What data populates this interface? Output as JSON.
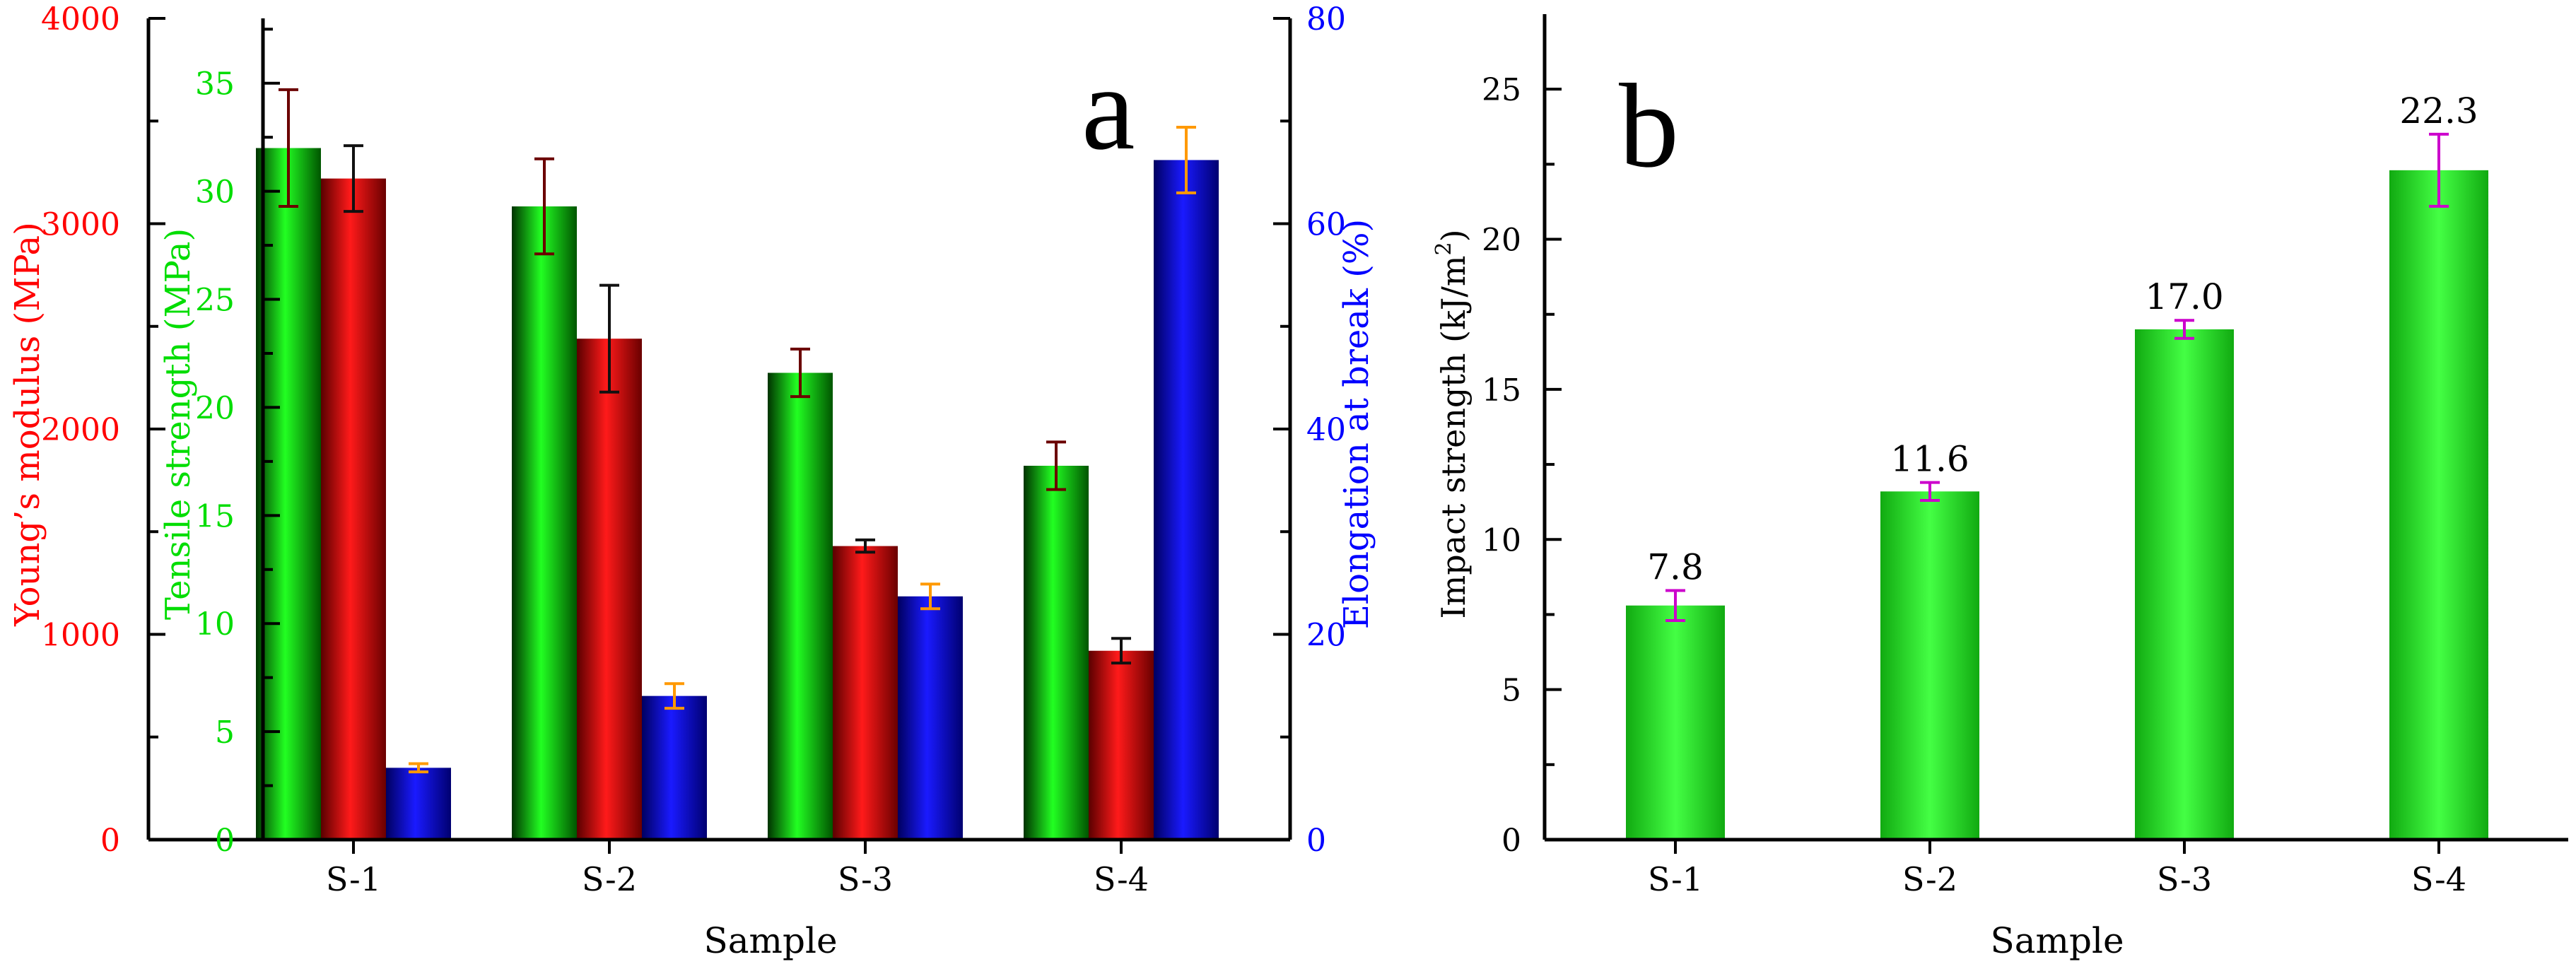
{
  "chart_data": [
    {
      "panel_label": "a",
      "type": "bar",
      "xlabel": "Sample",
      "categories": [
        "S-1",
        "S-2",
        "S-3",
        "S-4"
      ],
      "axes": {
        "young": {
          "label": "Young’s modulus (MPa)",
          "ylim": [
            0,
            4000
          ],
          "ticks": [
            0,
            1000,
            2000,
            3000,
            4000
          ],
          "color": "#ff0000"
        },
        "tensile": {
          "label": "Tensile strength (MPa)",
          "ylim": [
            0,
            38
          ],
          "ticks": [
            0,
            5,
            10,
            15,
            20,
            25,
            30,
            35
          ],
          "color": "#00dd00"
        },
        "elongation": {
          "label": "Elongation at break (%)",
          "ylim": [
            0,
            80
          ],
          "ticks": [
            0,
            20,
            40,
            60,
            80
          ],
          "color": "#0000ff"
        }
      },
      "series": [
        {
          "name": "Tensile strength",
          "axis": "tensile",
          "color": "#00cc00",
          "errbar_color": "#6b0000",
          "values": [
            32.0,
            29.3,
            21.6,
            17.3
          ],
          "errors": [
            2.7,
            2.2,
            1.1,
            1.1
          ]
        },
        {
          "name": "Young's modulus",
          "axis": "young",
          "color": "#ee0000",
          "errbar_color": "#111111",
          "values": [
            3220,
            2440,
            1430,
            920
          ],
          "errors": [
            160,
            260,
            30,
            60
          ]
        },
        {
          "name": "Elongation at break",
          "axis": "elongation",
          "color": "#0000cc",
          "errbar_color": "#ff9900",
          "values": [
            7.0,
            14.0,
            23.7,
            66.2
          ],
          "errors": [
            0.4,
            1.2,
            1.2,
            3.2
          ]
        }
      ]
    },
    {
      "panel_label": "b",
      "type": "bar",
      "xlabel": "Sample",
      "ylabel_main": "Impact strength (kJ/m",
      "ylabel_sup": "2",
      "ylabel_end": ")",
      "categories": [
        "S-1",
        "S-2",
        "S-3",
        "S-4"
      ],
      "ylim": [
        0,
        27.5
      ],
      "ticks": [
        0,
        5,
        10,
        15,
        20,
        25
      ],
      "series": [
        {
          "name": "Impact strength",
          "color": "#11cc11",
          "errbar_color": "#cc00cc",
          "values": [
            7.8,
            11.6,
            17.0,
            22.3
          ],
          "errors": [
            0.5,
            0.3,
            0.3,
            1.2
          ],
          "value_labels": [
            "7.8",
            "11.6",
            "17.0",
            "22.3"
          ]
        }
      ]
    }
  ]
}
